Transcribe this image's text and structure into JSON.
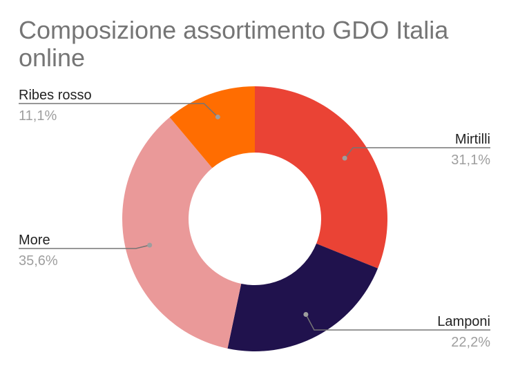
{
  "chart_data": {
    "type": "pie",
    "donut": true,
    "title": "Composizione assortimento GDO Italia online",
    "legend": "none",
    "slices": [
      {
        "label": "Mirtilli",
        "value": 31.1,
        "display": "31,1%",
        "color": "#ea4335"
      },
      {
        "label": "Lamponi",
        "value": 22.2,
        "display": "22,2%",
        "color": "#20124d"
      },
      {
        "label": "More",
        "value": 35.6,
        "display": "35,6%",
        "color": "#ea9999"
      },
      {
        "label": "Ribes rosso",
        "value": 11.1,
        "display": "11,1%",
        "color": "#ff6d01"
      }
    ]
  }
}
